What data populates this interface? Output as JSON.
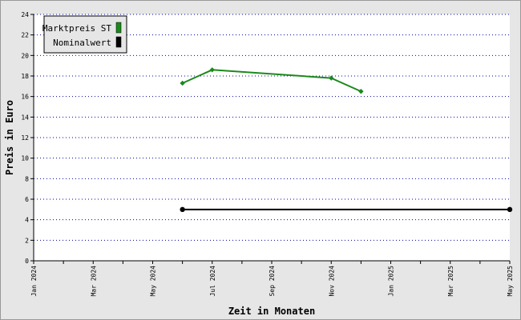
{
  "chart_data": {
    "type": "line",
    "xlabel": "Zeit in Monaten",
    "ylabel": "Preis in Euro",
    "ylim": [
      0,
      24
    ],
    "yticks": [
      0,
      2,
      4,
      6,
      8,
      10,
      12,
      14,
      16,
      18,
      20,
      22,
      24
    ],
    "xlim": [
      "2024-01",
      "2025-05"
    ],
    "xticks": [
      "Jan 2024",
      "Mar 2024",
      "May 2024",
      "Jul 2024",
      "Sep 2024",
      "Nov 2024",
      "Jan 2025",
      "Mar 2025",
      "May 2025"
    ],
    "grid": {
      "horizontal": true,
      "vertical": false,
      "style": "dotted",
      "color": "#0000aa"
    },
    "legend_position": "top-left",
    "series": [
      {
        "name": "Marktpreis ST",
        "color": "#1a8a1a",
        "x": [
          "2024-06",
          "2024-07",
          "2024-11",
          "2024-12"
        ],
        "values": [
          17.3,
          18.6,
          17.8,
          16.5
        ]
      },
      {
        "name": "Nominalwert",
        "color": "#000000",
        "x": [
          "2024-06",
          "2025-05"
        ],
        "values": [
          5,
          5
        ]
      }
    ]
  }
}
